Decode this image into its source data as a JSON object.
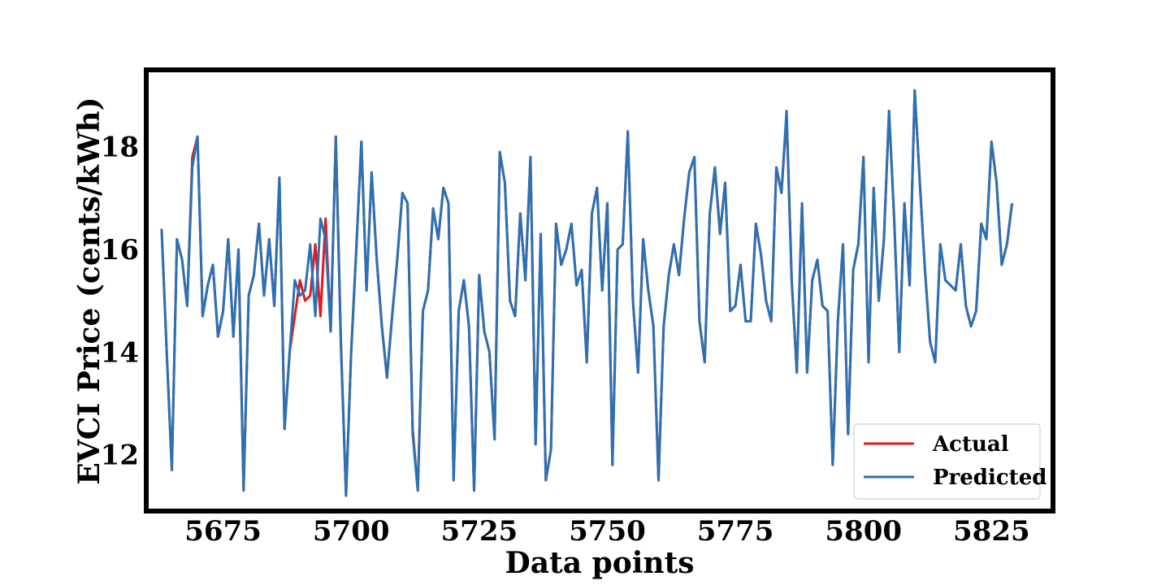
{
  "chart_data": {
    "type": "line",
    "xlabel": "Data points",
    "ylabel": "EVCI Price (cents/kWh)",
    "xlim": [
      5660,
      5837
    ],
    "ylim": [
      10.9,
      19.5
    ],
    "xticks": [
      5675,
      5700,
      5725,
      5750,
      5775,
      5800,
      5825
    ],
    "yticks": [
      12,
      14,
      16,
      18
    ],
    "grid": false,
    "legend_position": "bottom-right",
    "x_start": 5663,
    "series": [
      {
        "name": "Actual",
        "color": "#e31a1c",
        "values": [
          16.4,
          14.0,
          11.7,
          16.2,
          15.8,
          14.9,
          17.8,
          18.2,
          14.7,
          15.3,
          15.7,
          14.3,
          14.8,
          16.2,
          14.3,
          16.0,
          11.3,
          15.1,
          15.5,
          16.5,
          15.1,
          16.2,
          14.9,
          17.4,
          12.5,
          14.0,
          14.7,
          15.4,
          15.0,
          15.1,
          16.1,
          14.7,
          16.6,
          14.4,
          18.2,
          14.2,
          11.2,
          14.0,
          16.0,
          18.1,
          15.2,
          17.5,
          15.8,
          14.5,
          13.5,
          14.7,
          15.8,
          17.1,
          16.9,
          12.5,
          11.3,
          14.8,
          15.2,
          16.8,
          16.2,
          17.2,
          16.9,
          11.5,
          14.8,
          15.4,
          14.5,
          11.3,
          15.5,
          14.4,
          14.0,
          12.3,
          17.9,
          17.3,
          15.0,
          14.7,
          16.7,
          15.4,
          17.8,
          12.2,
          16.3,
          11.5,
          12.1,
          16.5,
          15.7,
          16.0,
          16.5,
          15.3,
          15.6,
          13.8,
          16.7,
          17.2,
          15.2,
          16.9,
          11.8,
          16.0,
          16.1,
          18.3,
          15.0,
          13.6,
          16.2,
          15.2,
          14.5,
          11.5,
          14.5,
          15.5,
          16.1,
          15.5,
          16.6,
          17.5,
          17.8,
          14.6,
          13.8,
          16.7,
          17.6,
          16.3,
          17.3,
          14.8,
          14.9,
          15.7,
          14.6,
          14.6,
          16.5,
          15.9,
          15.0,
          14.6,
          17.6,
          17.1,
          18.6,
          15.4,
          13.6,
          16.9,
          13.6,
          15.4,
          15.8,
          14.9,
          14.8,
          11.8,
          14.6,
          16.1,
          12.4,
          15.6,
          16.1,
          17.8,
          13.8,
          17.2,
          15.0,
          16.2,
          18.7,
          16.6,
          14.0,
          16.9,
          15.3,
          19.1,
          17.3,
          15.6,
          14.2,
          13.8,
          16.1,
          15.4,
          15.3,
          15.2,
          16.1,
          14.9,
          14.5,
          14.8,
          16.5,
          16.2,
          18.1,
          17.3,
          15.7,
          16.1,
          16.9
        ]
      },
      {
        "name": "Predicted",
        "color": "#2a72b4",
        "values": [
          16.4,
          14.0,
          11.7,
          16.2,
          15.8,
          14.9,
          17.6,
          18.2,
          14.7,
          15.3,
          15.7,
          14.3,
          14.8,
          16.2,
          14.3,
          16.0,
          11.3,
          15.1,
          15.5,
          16.5,
          15.1,
          16.2,
          14.9,
          17.4,
          12.5,
          14.0,
          15.4,
          15.1,
          15.2,
          16.1,
          14.7,
          16.6,
          16.2,
          14.4,
          18.2,
          14.1,
          11.2,
          14.0,
          16.0,
          18.1,
          15.2,
          17.5,
          15.8,
          14.5,
          13.5,
          14.7,
          15.8,
          17.1,
          16.9,
          12.4,
          11.3,
          14.8,
          15.2,
          16.8,
          16.2,
          17.2,
          16.9,
          11.5,
          14.8,
          15.4,
          14.5,
          11.3,
          15.5,
          14.4,
          14.0,
          12.3,
          17.9,
          17.3,
          15.0,
          14.7,
          16.7,
          15.4,
          17.8,
          12.2,
          16.3,
          11.5,
          12.1,
          16.5,
          15.7,
          16.0,
          16.5,
          15.3,
          15.6,
          13.8,
          16.7,
          17.2,
          15.2,
          16.9,
          11.8,
          16.0,
          16.1,
          18.3,
          15.0,
          13.6,
          16.2,
          15.2,
          14.5,
          11.5,
          14.5,
          15.5,
          16.1,
          15.5,
          16.6,
          17.5,
          17.8,
          14.6,
          13.8,
          16.7,
          17.6,
          16.3,
          17.3,
          14.8,
          14.9,
          15.7,
          14.6,
          14.6,
          16.5,
          15.9,
          15.0,
          14.6,
          17.6,
          17.1,
          18.7,
          15.4,
          13.6,
          16.9,
          13.6,
          15.4,
          15.8,
          14.9,
          14.8,
          11.8,
          14.6,
          16.1,
          12.4,
          15.6,
          16.1,
          17.8,
          13.8,
          17.2,
          15.0,
          16.2,
          18.7,
          16.6,
          14.0,
          16.9,
          15.3,
          19.1,
          17.3,
          15.6,
          14.2,
          13.8,
          16.1,
          15.4,
          15.3,
          15.2,
          16.1,
          14.9,
          14.5,
          14.8,
          16.5,
          16.2,
          18.1,
          17.3,
          15.7,
          16.1,
          16.9
        ]
      }
    ]
  }
}
